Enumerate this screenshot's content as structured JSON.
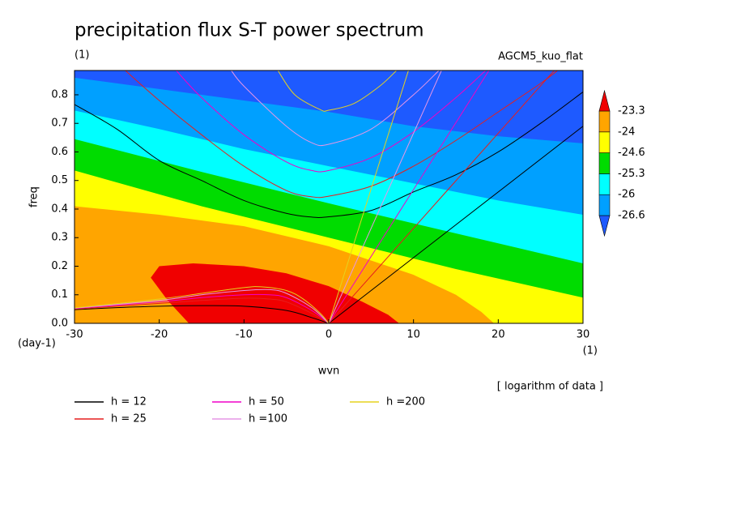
{
  "chart_data": {
    "type": "contour",
    "title": "precipitation flux S-T power spectrum",
    "subtitle": "(1)",
    "model_label": "AGCM5_kuo_flat",
    "xlabel": "wvn",
    "ylabel": "freq",
    "xunit": "(1)",
    "yunit": "(day-1)",
    "note": "[ logarithm of data ]",
    "xlim": [
      -30,
      30
    ],
    "ylim": [
      0,
      0.885
    ],
    "xticks": [
      -30,
      -20,
      -10,
      0,
      10,
      20,
      30
    ],
    "yticks": [
      {
        "value": 0,
        "label": "0.0"
      },
      0.1,
      0.2,
      0.3,
      0.4,
      0.5,
      0.6,
      0.7,
      0.8
    ],
    "levels": [
      -26.6,
      -26,
      -25.3,
      -24.6,
      -24,
      -23.3
    ],
    "colors": [
      "#1e5aff",
      "#00a0ff",
      "#00ffff",
      "#00dc00",
      "#ffff00",
      "#ffa500",
      "#f00000"
    ],
    "contours": [
      {
        "x": [
          -30,
          -20,
          -10,
          0,
          10,
          20,
          30
        ],
        "y": [
          0.86,
          0.82,
          0.78,
          0.74,
          0.69,
          0.655,
          0.63
        ]
      },
      {
        "x": [
          -30,
          -20,
          -10,
          0,
          10,
          20,
          30
        ],
        "y": [
          0.745,
          0.68,
          0.61,
          0.55,
          0.49,
          0.43,
          0.38
        ]
      },
      {
        "x": [
          -30,
          -15,
          0,
          15,
          30
        ],
        "y": [
          0.645,
          0.53,
          0.42,
          0.315,
          0.21
        ]
      },
      {
        "x": [
          -30,
          -15,
          0,
          15,
          30
        ],
        "y": [
          0.535,
          0.41,
          0.3,
          0.19,
          0.09
        ]
      },
      {
        "x": [
          -30,
          -20,
          -10,
          0,
          10,
          15,
          18,
          19.5
        ],
        "y": [
          0.41,
          0.38,
          0.34,
          0.27,
          0.17,
          0.1,
          0.04,
          0
        ]
      },
      {
        "x": [
          -16.5,
          -19,
          -21,
          -20,
          -16,
          -10,
          -5,
          0,
          4,
          7,
          8.3,
          -16.5
        ],
        "y": [
          0,
          0.08,
          0.16,
          0.2,
          0.21,
          0.2,
          0.175,
          0.13,
          0.075,
          0.03,
          0,
          0
        ]
      }
    ],
    "series": [
      {
        "name": "h = 12",
        "color": "#000000",
        "curves": [
          {
            "x": [
              0,
              30
            ],
            "y": [
              0,
              0.69
            ]
          },
          {
            "x": [
              -30,
              -25,
              -20,
              -15,
              -10,
              -5,
              -2,
              0,
              5,
              10,
              15,
              20,
              25,
              30
            ],
            "y": [
              0.766,
              0.68,
              0.57,
              0.5,
              0.43,
              0.385,
              0.372,
              0.373,
              0.395,
              0.46,
              0.52,
              0.6,
              0.7,
              0.81
            ]
          },
          {
            "x": [
              -30,
              -25,
              -20,
              -15,
              -10,
              -5,
              -2,
              0
            ],
            "y": [
              0.048,
              0.055,
              0.06,
              0.062,
              0.06,
              0.045,
              0.02,
              0
            ]
          }
        ]
      },
      {
        "name": "h = 25",
        "color": "#e61e1e",
        "curves": [
          {
            "x": [
              0,
              26.6
            ],
            "y": [
              0,
              0.885
            ]
          },
          {
            "x": [
              -24,
              -20,
              -15,
              -10,
              -5,
              -2,
              0,
              5,
              10,
              15,
              20,
              25,
              27
            ],
            "y": [
              0.885,
              0.78,
              0.66,
              0.55,
              0.465,
              0.443,
              0.445,
              0.48,
              0.55,
              0.64,
              0.74,
              0.84,
              0.885
            ]
          },
          {
            "x": [
              -30,
              -20,
              -15,
              -10,
              -7,
              -5,
              -2,
              0
            ],
            "y": [
              0.05,
              0.07,
              0.08,
              0.088,
              0.085,
              0.075,
              0.035,
              0
            ]
          }
        ]
      },
      {
        "name": "h = 50",
        "color": "#f000c8",
        "curves": [
          {
            "x": [
              0,
              18.9
            ],
            "y": [
              0,
              0.885
            ]
          },
          {
            "x": [
              -18,
              -15,
              -10,
              -5,
              -2,
              0,
              5,
              10,
              15,
              18.5
            ],
            "y": [
              0.885,
              0.79,
              0.66,
              0.565,
              0.535,
              0.535,
              0.58,
              0.67,
              0.79,
              0.885
            ]
          },
          {
            "x": [
              -30,
              -20,
              -15,
              -10,
              -7,
              -5,
              -2,
              0
            ],
            "y": [
              0.052,
              0.075,
              0.09,
              0.1,
              0.1,
              0.09,
              0.045,
              0
            ]
          }
        ]
      },
      {
        "name": "h =100",
        "color": "#e696e6",
        "curves": [
          {
            "x": [
              0,
              13.3
            ],
            "y": [
              0,
              0.885
            ]
          },
          {
            "x": [
              -11.5,
              -10,
              -5,
              -2,
              0,
              5,
              10,
              13
            ],
            "y": [
              0.885,
              0.83,
              0.69,
              0.632,
              0.627,
              0.68,
              0.8,
              0.885
            ]
          },
          {
            "x": [
              -30,
              -20,
              -15,
              -10,
              -7,
              -5,
              -2,
              0
            ],
            "y": [
              0.053,
              0.08,
              0.1,
              0.115,
              0.118,
              0.105,
              0.055,
              0
            ]
          }
        ]
      },
      {
        "name": "h =200",
        "color": "#e6d21e",
        "curves": [
          {
            "x": [
              0,
              9.4
            ],
            "y": [
              0,
              0.885
            ]
          },
          {
            "x": [
              -6,
              -4,
              -1,
              0,
              3,
              6,
              8
            ],
            "y": [
              0.885,
              0.8,
              0.748,
              0.746,
              0.77,
              0.83,
              0.885
            ]
          },
          {
            "x": [
              -30,
              -20,
              -15,
              -10,
              -8,
              -5,
              -3,
              -1,
              0
            ],
            "y": [
              0.054,
              0.085,
              0.105,
              0.125,
              0.128,
              0.115,
              0.085,
              0.035,
              0
            ]
          }
        ]
      }
    ]
  }
}
